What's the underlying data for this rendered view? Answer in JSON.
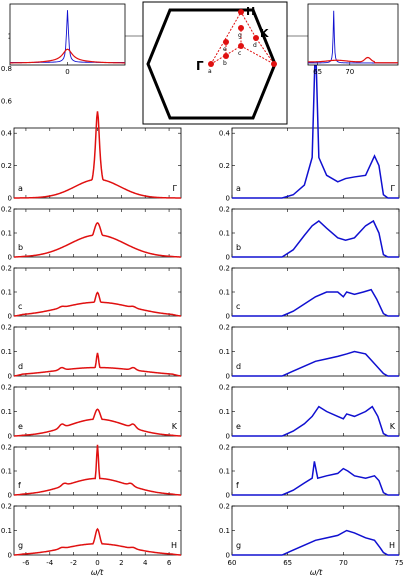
{
  "figure": {
    "xlabel_left": "ω/t",
    "xlabel_right": "ω/t"
  },
  "chart_data": [
    {
      "type": "line",
      "column": "left",
      "panels": [
        {
          "label": "a",
          "corner": "Γ",
          "peak": 0.52,
          "width": 0.22,
          "bg": 0.1,
          "spread": 1.9,
          "sat": 0.0,
          "sat_x": 3.0
        },
        {
          "label": "b",
          "corner": "",
          "peak": 0.13,
          "width": 0.5,
          "bg": 0.08,
          "spread": 2.3,
          "sat": 0.0,
          "sat_x": 3.0
        },
        {
          "label": "c",
          "corner": "",
          "peak": 0.09,
          "width": 0.3,
          "bg": 0.05,
          "spread": 3.0,
          "sat": 0.005,
          "sat_x": 3.0
        },
        {
          "label": "d",
          "corner": "",
          "peak": 0.09,
          "width": 0.14,
          "bg": 0.03,
          "spread": 3.6,
          "sat": 0.01,
          "sat_x": 3.0
        },
        {
          "label": "e",
          "corner": "K",
          "peak": 0.1,
          "width": 0.45,
          "bg": 0.06,
          "spread": 2.5,
          "sat": 0.015,
          "sat_x": 3.0
        },
        {
          "label": "f",
          "corner": "",
          "peak": 0.2,
          "width": 0.12,
          "bg": 0.06,
          "spread": 2.6,
          "sat": 0.01,
          "sat_x": 2.8
        },
        {
          "label": "g",
          "corner": "H",
          "peak": 0.1,
          "width": 0.3,
          "bg": 0.04,
          "spread": 2.8,
          "sat": 0.005,
          "sat_x": 3.0
        }
      ],
      "xlim": [
        -7,
        7
      ],
      "xticks": [
        -6,
        -4,
        -2,
        0,
        2,
        4,
        6
      ],
      "ylim_a": [
        0,
        1
      ],
      "yticks_a": [
        0,
        0.2,
        0.4,
        0.6,
        0.8,
        1
      ],
      "ylim": [
        0,
        0.2
      ],
      "yticks": [
        0,
        0.1,
        0.2
      ],
      "color": "#e01010"
    },
    {
      "type": "line",
      "column": "right",
      "panels": [
        {
          "label": "a",
          "corner": "Γ",
          "points": [
            [
              60,
              0
            ],
            [
              64.5,
              0
            ],
            [
              65.5,
              0.02
            ],
            [
              66.5,
              0.08
            ],
            [
              67.2,
              0.25
            ],
            [
              67.5,
              0.98
            ],
            [
              67.8,
              0.25
            ],
            [
              68.5,
              0.14
            ],
            [
              69.5,
              0.1
            ],
            [
              70.2,
              0.12
            ],
            [
              71,
              0.13
            ],
            [
              72,
              0.14
            ],
            [
              72.8,
              0.26
            ],
            [
              73.2,
              0.2
            ],
            [
              73.6,
              0.02
            ],
            [
              74,
              0
            ],
            [
              75,
              0
            ]
          ]
        },
        {
          "label": "b",
          "corner": "",
          "points": [
            [
              60,
              0
            ],
            [
              64.5,
              0
            ],
            [
              65.5,
              0.03
            ],
            [
              66.5,
              0.09
            ],
            [
              67.2,
              0.13
            ],
            [
              67.8,
              0.15
            ],
            [
              68.5,
              0.12
            ],
            [
              69.5,
              0.08
            ],
            [
              70.2,
              0.07
            ],
            [
              71,
              0.08
            ],
            [
              72,
              0.13
            ],
            [
              72.7,
              0.15
            ],
            [
              73.2,
              0.1
            ],
            [
              73.6,
              0.01
            ],
            [
              74,
              0
            ],
            [
              75,
              0
            ]
          ]
        },
        {
          "label": "c",
          "corner": "",
          "points": [
            [
              60,
              0
            ],
            [
              64.5,
              0
            ],
            [
              65.5,
              0.02
            ],
            [
              66.5,
              0.05
            ],
            [
              67.5,
              0.08
            ],
            [
              68.5,
              0.1
            ],
            [
              69.5,
              0.1
            ],
            [
              70.0,
              0.08
            ],
            [
              70.3,
              0.1
            ],
            [
              71,
              0.09
            ],
            [
              71.8,
              0.1
            ],
            [
              72.5,
              0.11
            ],
            [
              73,
              0.07
            ],
            [
              73.6,
              0.01
            ],
            [
              74,
              0
            ],
            [
              75,
              0
            ]
          ]
        },
        {
          "label": "d",
          "corner": "",
          "points": [
            [
              60,
              0
            ],
            [
              64.5,
              0
            ],
            [
              65.5,
              0.02
            ],
            [
              66.5,
              0.04
            ],
            [
              67.5,
              0.06
            ],
            [
              68.5,
              0.07
            ],
            [
              69.5,
              0.08
            ],
            [
              70.3,
              0.09
            ],
            [
              71,
              0.1
            ],
            [
              72,
              0.09
            ],
            [
              72.6,
              0.06
            ],
            [
              73.2,
              0.03
            ],
            [
              73.6,
              0.01
            ],
            [
              74,
              0
            ],
            [
              75,
              0
            ]
          ]
        },
        {
          "label": "e",
          "corner": "K",
          "points": [
            [
              60,
              0
            ],
            [
              64.5,
              0
            ],
            [
              65.5,
              0.02
            ],
            [
              66.5,
              0.05
            ],
            [
              67.2,
              0.08
            ],
            [
              67.8,
              0.12
            ],
            [
              68.5,
              0.1
            ],
            [
              69.5,
              0.08
            ],
            [
              70,
              0.07
            ],
            [
              70.3,
              0.09
            ],
            [
              71,
              0.08
            ],
            [
              72,
              0.1
            ],
            [
              72.6,
              0.12
            ],
            [
              73.1,
              0.08
            ],
            [
              73.6,
              0.01
            ],
            [
              74,
              0
            ],
            [
              75,
              0
            ]
          ]
        },
        {
          "label": "f",
          "corner": "",
          "points": [
            [
              60,
              0
            ],
            [
              64.5,
              0
            ],
            [
              65.5,
              0.02
            ],
            [
              66.5,
              0.05
            ],
            [
              67.2,
              0.07
            ],
            [
              67.4,
              0.14
            ],
            [
              67.7,
              0.07
            ],
            [
              68.5,
              0.08
            ],
            [
              69.5,
              0.09
            ],
            [
              70,
              0.11
            ],
            [
              70.4,
              0.1
            ],
            [
              71,
              0.08
            ],
            [
              72,
              0.07
            ],
            [
              72.8,
              0.08
            ],
            [
              73.2,
              0.06
            ],
            [
              73.6,
              0.01
            ],
            [
              74,
              0
            ],
            [
              75,
              0
            ]
          ]
        },
        {
          "label": "g",
          "corner": "H",
          "points": [
            [
              60,
              0
            ],
            [
              64.5,
              0
            ],
            [
              65.5,
              0.02
            ],
            [
              66.5,
              0.04
            ],
            [
              67.5,
              0.06
            ],
            [
              68.5,
              0.07
            ],
            [
              69.5,
              0.08
            ],
            [
              70.3,
              0.1
            ],
            [
              71,
              0.09
            ],
            [
              72,
              0.07
            ],
            [
              72.8,
              0.06
            ],
            [
              73.3,
              0.03
            ],
            [
              73.6,
              0.01
            ],
            [
              74,
              0
            ],
            [
              75,
              0
            ]
          ]
        }
      ],
      "xlim": [
        60,
        75
      ],
      "xticks": [
        60,
        65,
        70,
        75
      ],
      "ylim_a": [
        0,
        1
      ],
      "ylim": [
        0,
        0.2
      ],
      "color": "#1010d0"
    }
  ],
  "insets": {
    "left": {
      "xtick": "0",
      "colors": [
        "#1010d0",
        "#e01010"
      ]
    },
    "right": {
      "xticks": [
        "65",
        "70"
      ],
      "colors": [
        "#1010d0",
        "#e01010"
      ]
    }
  },
  "brillouin_zone": {
    "labels": {
      "H": "H",
      "K": "K",
      "Gamma": "Γ"
    },
    "points": [
      "a",
      "b",
      "c",
      "d",
      "e",
      "f",
      "g"
    ],
    "line_color": "#000000",
    "path_color": "#e01010"
  }
}
